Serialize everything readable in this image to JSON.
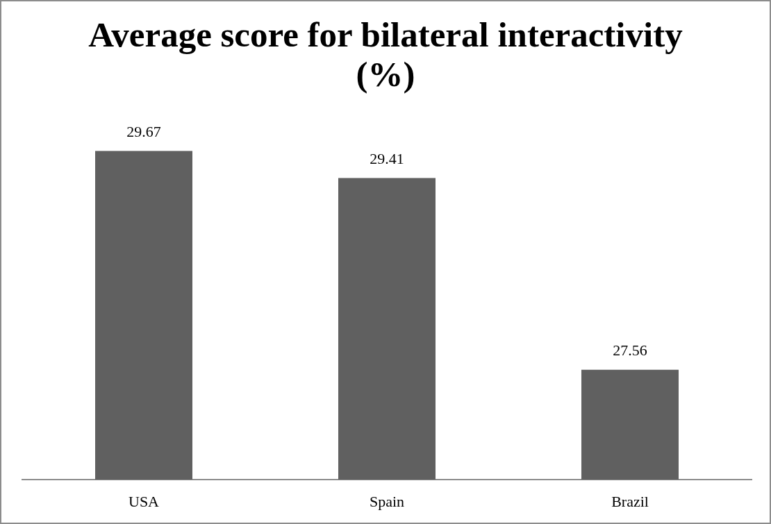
{
  "chart_data": {
    "type": "bar",
    "title": "Average score for bilateral interactivity (%)",
    "categories": [
      "USA",
      "Spain",
      "Brazil"
    ],
    "values": [
      29.67,
      29.41,
      27.56
    ],
    "color": "#606060",
    "tick_labels": "x",
    "data_labels": true
  }
}
